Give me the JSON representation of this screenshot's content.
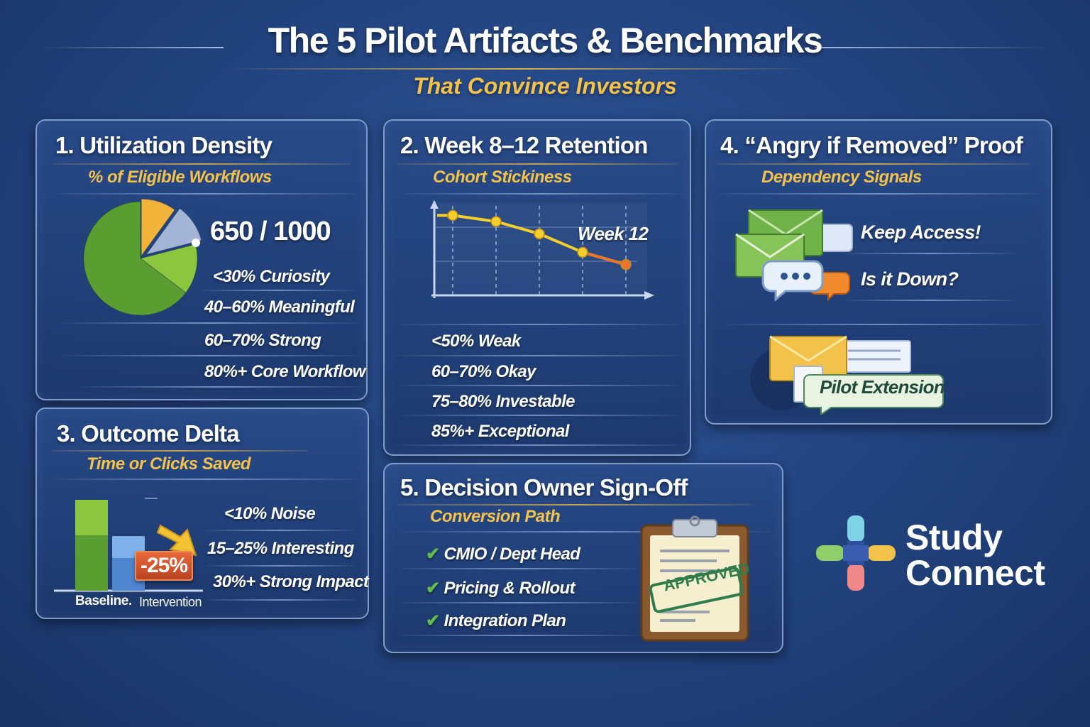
{
  "header": {
    "title": "The 5 Pilot Artifacts & Benchmarks",
    "subtitle": "That Convince Investors"
  },
  "card1": {
    "title": "1. Utilization Density",
    "subtitle": "% of Eligible Workflows",
    "value": "650 / 1000",
    "benchmarks": [
      "<30% Curiosity",
      "40–60% Meaningful",
      "60–70% Strong",
      "80%+ Core Workflow"
    ]
  },
  "card2": {
    "title": "2. Week 8–12 Retention",
    "subtitle": "Cohort Stickiness",
    "chart_label": "Week 12",
    "benchmarks": [
      "<50% Weak",
      "60–70% Okay",
      "75–80% Investable",
      "85%+ Exceptional"
    ]
  },
  "card3": {
    "title": "3. Outcome Delta",
    "subtitle": "Time or Clicks Saved",
    "delta": "-25%",
    "bar_labels": [
      "Baseline.",
      "Intervention"
    ],
    "benchmarks": [
      "<10% Noise",
      "15–25% Interesting",
      "30%+ Strong Impact"
    ]
  },
  "card4": {
    "title": "4. “Angry if Removed” Proof",
    "subtitle": "Dependency Signals",
    "signals": [
      "Keep Access!",
      "Is it Down?"
    ],
    "tag": "Pilot Extension"
  },
  "card5": {
    "title": "5. Decision Owner Sign-Off",
    "subtitle": "Conversion Path",
    "items": [
      "CMIO / Dept Head",
      "Pricing & Rollout",
      "Integration Plan"
    ],
    "stamp": "APPROVED"
  },
  "brand": {
    "line1": "Study",
    "line2": "Connect"
  },
  "colors": {
    "accent_gold": "#f3c24b",
    "pie_green": "#5a9e32",
    "pie_lightgreen": "#8cc63e",
    "pie_yellow": "#f2b33a",
    "pie_slate": "#a3b4d6",
    "line_yellow": "#f5cf2e",
    "line_orange": "#e8762c",
    "check_green": "#5fc04a"
  },
  "chart_data": [
    {
      "type": "pie",
      "values": [
        650,
        350
      ]
    },
    {
      "type": "line",
      "x": [
        1,
        2,
        3,
        4,
        5
      ],
      "y": [
        92,
        88,
        80,
        68,
        60
      ],
      "ylim": [
        40,
        100
      ]
    },
    {
      "type": "bar",
      "categories": [
        "Baseline.",
        "Intervention"
      ],
      "values": [
        100,
        75
      ]
    }
  ]
}
